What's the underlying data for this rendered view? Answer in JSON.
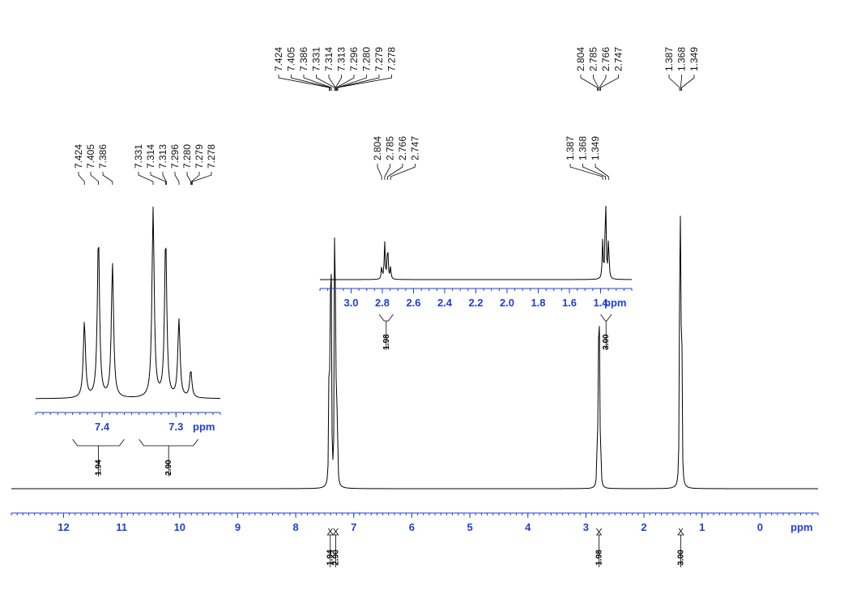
{
  "chart_data": [
    {
      "type": "line",
      "title": "",
      "xlabel": "ppm",
      "ylabel": "",
      "x_reversed": true,
      "xlim": [
        12.9,
        -1.0
      ],
      "tick_labels": [
        "12",
        "11",
        "10",
        "9",
        "8",
        "7",
        "6",
        "5",
        "4",
        "3",
        "2",
        "1",
        "0"
      ],
      "peaks": [
        {
          "x": 7.424,
          "y": 0.45
        },
        {
          "x": 7.405,
          "y": 0.58
        },
        {
          "x": 7.386,
          "y": 0.52
        },
        {
          "x": 7.331,
          "y": 0.6
        },
        {
          "x": 7.314,
          "y": 0.56
        },
        {
          "x": 7.296,
          "y": 0.3
        },
        {
          "x": 7.28,
          "y": 0.12
        },
        {
          "x": 2.804,
          "y": 0.14
        },
        {
          "x": 2.785,
          "y": 0.42
        },
        {
          "x": 2.766,
          "y": 0.42
        },
        {
          "x": 2.747,
          "y": 0.14
        },
        {
          "x": 1.387,
          "y": 0.42
        },
        {
          "x": 1.368,
          "y": 1.0
        },
        {
          "x": 1.349,
          "y": 0.48
        }
      ],
      "peak_label_groups": [
        [
          "7.424",
          "7.405",
          "7.386",
          "7.331",
          "7.314",
          "7.313",
          "7.296",
          "7.280",
          "7.279",
          "7.278"
        ],
        [
          "2.804",
          "2.785",
          "2.766",
          "2.747"
        ],
        [
          "1.387",
          "1.368",
          "1.349"
        ]
      ],
      "integrals": [
        {
          "from": 7.44,
          "to": 7.37,
          "value": "1.94"
        },
        {
          "from": 7.35,
          "to": 7.27,
          "value": "2.90"
        },
        {
          "from": 2.82,
          "to": 2.73,
          "value": "1.98"
        },
        {
          "from": 1.4,
          "to": 1.33,
          "value": "3.00"
        }
      ]
    },
    {
      "type": "line",
      "title": "",
      "xlabel": "ppm",
      "x_reversed": true,
      "xlim": [
        3.2,
        1.2
      ],
      "tick_labels": [
        "3.0",
        "2.8",
        "2.6",
        "2.4",
        "2.2",
        "2.0",
        "1.8",
        "1.6",
        "1.4"
      ],
      "peaks": [
        {
          "x": 2.804,
          "y": 0.14
        },
        {
          "x": 2.785,
          "y": 0.42
        },
        {
          "x": 2.766,
          "y": 0.42
        },
        {
          "x": 2.747,
          "y": 0.14
        },
        {
          "x": 1.387,
          "y": 0.42
        },
        {
          "x": 1.368,
          "y": 1.0
        },
        {
          "x": 1.349,
          "y": 0.48
        }
      ],
      "peak_labels": [
        "2.804",
        "2.785",
        "2.766",
        "2.747",
        "1.387",
        "1.368",
        "1.349"
      ],
      "integrals": [
        {
          "from": 2.82,
          "to": 2.73,
          "value": "1.98"
        },
        {
          "from": 1.4,
          "to": 1.33,
          "value": "3.00"
        }
      ]
    },
    {
      "type": "line",
      "title": "",
      "xlabel": "ppm",
      "x_reversed": true,
      "xlim": [
        7.49,
        7.24
      ],
      "tick_labels": [
        "7.4",
        "7.3"
      ],
      "peaks": [
        {
          "x": 7.424,
          "y": 0.36
        },
        {
          "x": 7.405,
          "y": 0.77
        },
        {
          "x": 7.386,
          "y": 0.64
        },
        {
          "x": 7.331,
          "y": 0.9
        },
        {
          "x": 7.314,
          "y": 0.76
        },
        {
          "x": 7.296,
          "y": 0.37
        },
        {
          "x": 7.28,
          "y": 0.13
        }
      ],
      "peak_labels": [
        "7.424",
        "7.405",
        "7.386",
        "7.331",
        "7.314",
        "7.313",
        "7.296",
        "7.280",
        "7.279",
        "7.278"
      ],
      "integrals": [
        {
          "from": 7.44,
          "to": 7.37,
          "value": "1.94"
        },
        {
          "from": 7.35,
          "to": 7.27,
          "value": "2.90"
        }
      ]
    }
  ]
}
